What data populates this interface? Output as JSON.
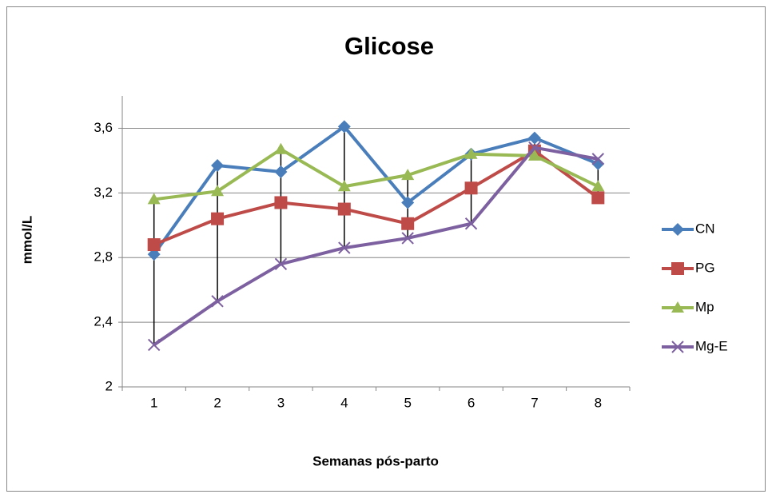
{
  "chart_data": {
    "type": "line",
    "title": "Glicose",
    "x_label": "Semanas pós-parto",
    "y_label": "mmol/L",
    "categories": [
      "1",
      "2",
      "3",
      "4",
      "5",
      "6",
      "7",
      "8"
    ],
    "series": [
      {
        "name": "CN",
        "color": "#4a7ebb",
        "marker": "diamond",
        "values": [
          2.82,
          3.37,
          3.33,
          3.61,
          3.14,
          3.44,
          3.54,
          3.38
        ]
      },
      {
        "name": "PG",
        "color": "#be4b48",
        "marker": "square",
        "values": [
          2.88,
          3.04,
          3.14,
          3.1,
          3.01,
          3.23,
          3.46,
          3.17
        ]
      },
      {
        "name": "Mp",
        "color": "#98b954",
        "marker": "triangle",
        "values": [
          3.16,
          3.21,
          3.47,
          3.24,
          3.31,
          3.44,
          3.43,
          3.24
        ]
      },
      {
        "name": "Mg-E",
        "color": "#7d60a0",
        "marker": "x",
        "values": [
          2.26,
          2.53,
          2.76,
          2.86,
          2.92,
          3.01,
          3.48,
          3.41
        ]
      }
    ],
    "ylim": [
      2,
      3.8
    ],
    "yticks": [
      2,
      {
        "value": 2.4,
        "label": "2,4"
      },
      {
        "value": 2.8,
        "label": "2,8"
      },
      {
        "value": 3.2,
        "label": "3,2"
      },
      {
        "value": 3.6,
        "label": "3,6"
      }
    ],
    "grid": true,
    "high_low_lines": true,
    "legend": "right"
  }
}
